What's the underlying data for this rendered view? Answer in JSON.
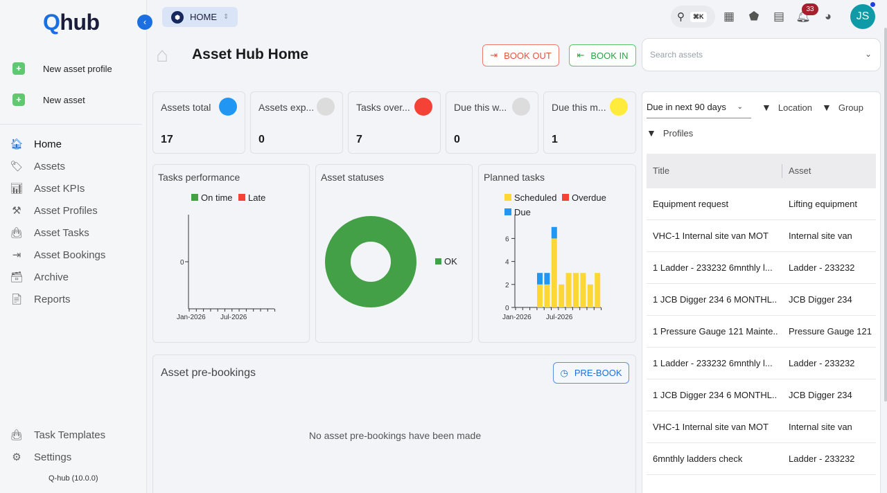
{
  "app": {
    "logo_q": "Q",
    "logo_rest": "hub",
    "version": "Q-hub (10.0.0)"
  },
  "sidebar": {
    "collapse_icon": "chevron-left-icon",
    "quick": [
      {
        "label": "New asset profile",
        "icon": "plus-icon"
      },
      {
        "label": "New asset",
        "icon": "plus-icon"
      }
    ],
    "nav": [
      {
        "label": "Home",
        "icon": "home-icon",
        "glyph": "🏠︎",
        "active": true
      },
      {
        "label": "Assets",
        "icon": "tag-icon",
        "glyph": "🏷︎"
      },
      {
        "label": "Asset KPIs",
        "icon": "bar-chart-icon",
        "glyph": "📊︎"
      },
      {
        "label": "Asset Profiles",
        "icon": "tools-icon",
        "glyph": "⚒"
      },
      {
        "label": "Asset Tasks",
        "icon": "briefcase-icon",
        "glyph": "👜︎"
      },
      {
        "label": "Asset Bookings",
        "icon": "sign-out-icon",
        "glyph": "⇥"
      },
      {
        "label": "Archive",
        "icon": "archive-icon",
        "glyph": "🗃︎"
      },
      {
        "label": "Reports",
        "icon": "report-icon",
        "glyph": "📄︎"
      }
    ],
    "bottom": [
      {
        "label": "Task Templates",
        "icon": "briefcase-icon",
        "glyph": "👜︎"
      },
      {
        "label": "Settings",
        "icon": "gear-icon",
        "glyph": "⚙"
      }
    ]
  },
  "topbar": {
    "breadcrumb": "HOME",
    "search_shortcut": "⌘K",
    "notifications_count": "33",
    "avatar_initials": "JS"
  },
  "header": {
    "title": "Asset Hub Home",
    "book_out": "BOOK OUT",
    "book_in": "BOOK IN",
    "search_placeholder": "Search assets"
  },
  "stats": [
    {
      "label": "Assets total",
      "value": "17",
      "color": "#2196f3"
    },
    {
      "label": "Assets exp...",
      "value": "0",
      "color": "#dcdcdc"
    },
    {
      "label": "Tasks over...",
      "value": "7",
      "color": "#f44336"
    },
    {
      "label": "Due this w...",
      "value": "0",
      "color": "#dcdcdc"
    },
    {
      "label": "Due this m...",
      "value": "1",
      "color": "#ffeb3b"
    }
  ],
  "charts": {
    "tasks_performance_title": "Tasks performance",
    "asset_statuses_title": "Asset statuses",
    "planned_tasks_title": "Planned tasks"
  },
  "chart_data": [
    {
      "type": "line",
      "title": "Tasks performance",
      "legend": [
        {
          "name": "On time",
          "color": "#43a047"
        },
        {
          "name": "Late",
          "color": "#f44336"
        }
      ],
      "yticks": [
        "0"
      ],
      "xticks": [
        "Jan-2026",
        "Jul-2026"
      ],
      "series": [
        {
          "name": "On time",
          "values": []
        },
        {
          "name": "Late",
          "values": []
        }
      ]
    },
    {
      "type": "pie",
      "title": "Asset statuses",
      "donut": true,
      "slices": [
        {
          "name": "OK",
          "value": 17,
          "color": "#43a047"
        }
      ]
    },
    {
      "type": "bar",
      "stacked": true,
      "title": "Planned tasks",
      "legend": [
        {
          "name": "Scheduled",
          "color": "#fdd835"
        },
        {
          "name": "Overdue",
          "color": "#f44336"
        },
        {
          "name": "Due",
          "color": "#2196f3"
        }
      ],
      "ylim": [
        0,
        8
      ],
      "yticks": [
        "0",
        "2",
        "4",
        "6"
      ],
      "xticks": [
        "Jan-2026",
        "Jul-2026"
      ],
      "series": [
        {
          "name": "Scheduled",
          "values": [
            2,
            2,
            6,
            2,
            3,
            3,
            3,
            2,
            3
          ]
        },
        {
          "name": "Due",
          "values": [
            1,
            1,
            1,
            0,
            0,
            0,
            0,
            0,
            0
          ]
        }
      ]
    }
  ],
  "prebookings": {
    "title": "Asset pre-bookings",
    "button": "PRE-BOOK",
    "empty": "No asset pre-bookings have been made"
  },
  "tasks_panel": {
    "range": "Due in next 90 days",
    "filters": [
      "Location",
      "Group",
      "Profiles"
    ],
    "columns": [
      "Title",
      "Asset"
    ],
    "rows": [
      {
        "title": "Equipment request",
        "asset": "Lifting equipment"
      },
      {
        "title": "VHC-1 Internal site van MOT",
        "asset": "Internal site van"
      },
      {
        "title": "1 Ladder - 233232 6mnthly l...",
        "asset": "Ladder - 233232"
      },
      {
        "title": "1 JCB Digger 234 6 MONTHL...",
        "asset": "JCB Digger 234"
      },
      {
        "title": "1 Pressure Gauge 121 Mainte...",
        "asset": "Pressure Gauge 121"
      },
      {
        "title": "1 Ladder - 233232 6mnthly l...",
        "asset": "Ladder - 233232"
      },
      {
        "title": "1 JCB Digger 234 6 MONTHL...",
        "asset": "JCB Digger 234"
      },
      {
        "title": "VHC-1 Internal site van MOT",
        "asset": "Internal site van"
      },
      {
        "title": "6mnthly ladders check",
        "asset": "Ladder - 233232"
      }
    ]
  }
}
